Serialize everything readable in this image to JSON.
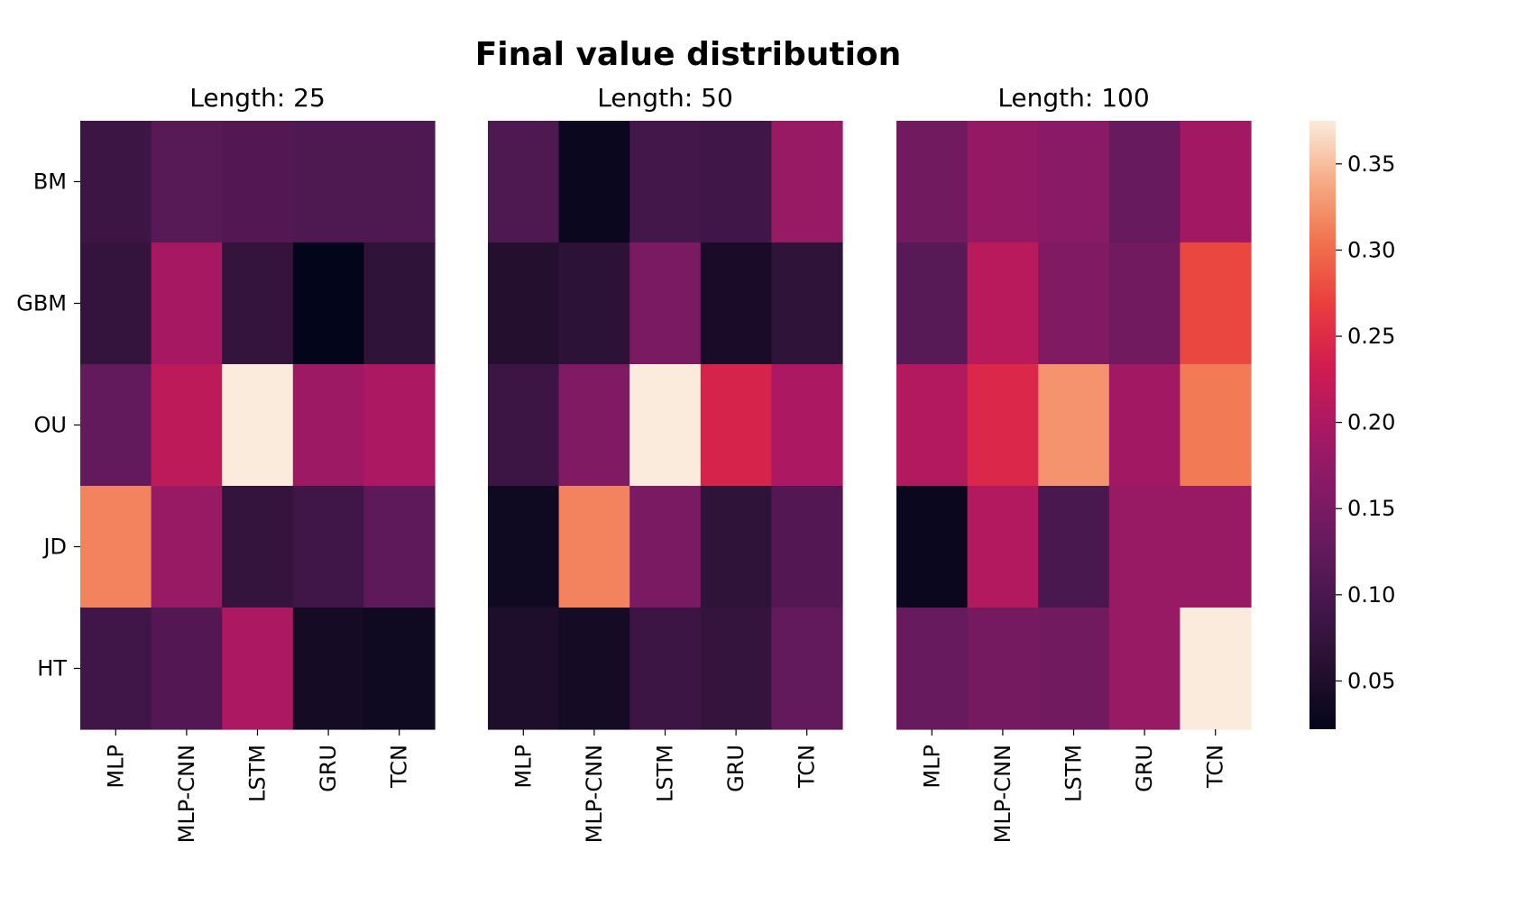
{
  "chart_data": {
    "type": "heatmap",
    "title": "Final value distribution",
    "rows": [
      "BM",
      "GBM",
      "OU",
      "JD",
      "HT"
    ],
    "columns": [
      "MLP",
      "MLP-CNN",
      "LSTM",
      "GRU",
      "TCN"
    ],
    "colorbar": {
      "min": 0.022,
      "max": 0.375,
      "ticks": [
        0.05,
        0.1,
        0.15,
        0.2,
        0.25,
        0.3,
        0.35
      ],
      "tick_labels": [
        "0.05",
        "0.10",
        "0.15",
        "0.20",
        "0.25",
        "0.30",
        "0.35"
      ]
    },
    "panels": [
      {
        "title": "Length: 25",
        "values": [
          [
            0.085,
            0.115,
            0.11,
            0.105,
            0.105
          ],
          [
            0.075,
            0.195,
            0.075,
            0.022,
            0.07
          ],
          [
            0.125,
            0.215,
            0.375,
            0.185,
            0.2
          ],
          [
            0.315,
            0.18,
            0.075,
            0.09,
            0.12
          ],
          [
            0.09,
            0.11,
            0.2,
            0.04,
            0.035
          ]
        ]
      },
      {
        "title": "Length: 50",
        "values": [
          [
            0.105,
            0.03,
            0.095,
            0.09,
            0.18
          ],
          [
            0.055,
            0.065,
            0.15,
            0.045,
            0.07
          ],
          [
            0.085,
            0.155,
            0.375,
            0.24,
            0.2
          ],
          [
            0.035,
            0.315,
            0.15,
            0.07,
            0.11
          ],
          [
            0.05,
            0.04,
            0.085,
            0.075,
            0.125
          ]
        ]
      },
      {
        "title": "Length: 100",
        "values": [
          [
            0.14,
            0.175,
            0.165,
            0.13,
            0.19
          ],
          [
            0.115,
            0.21,
            0.155,
            0.14,
            0.275
          ],
          [
            0.205,
            0.245,
            0.325,
            0.19,
            0.31
          ],
          [
            0.03,
            0.205,
            0.1,
            0.18,
            0.18
          ],
          [
            0.13,
            0.145,
            0.14,
            0.18,
            0.375
          ]
        ]
      }
    ]
  },
  "colors": {
    "background": "#ffffff",
    "text": "#000000"
  }
}
